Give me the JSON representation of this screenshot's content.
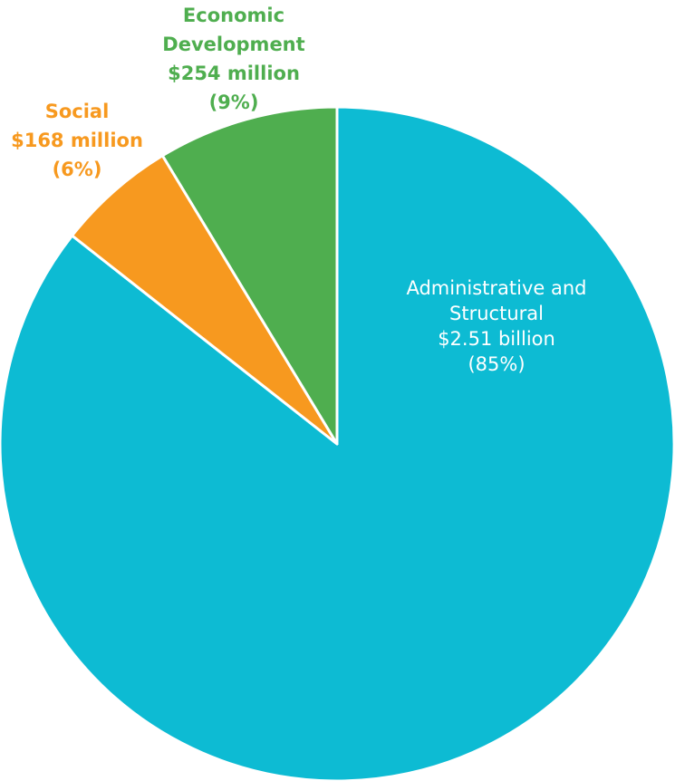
{
  "chart_data": {
    "type": "pie",
    "title": "",
    "slices": [
      {
        "name": "Administrative and Structural",
        "value": 2510,
        "value_label": "$2.51 billion",
        "percent": 85,
        "percent_label": "(85%)",
        "color": "#0dbbd3",
        "label_lines": [
          "Administrative and",
          "Structural",
          "$2.51 billion",
          "(85%)"
        ],
        "label_color": "#ffffff"
      },
      {
        "name": "Social",
        "value": 168,
        "value_label": "$168 million",
        "percent": 6,
        "percent_label": "(6%)",
        "color": "#f7991f",
        "label_lines": [
          "Social",
          "$168 million",
          "(6%)"
        ],
        "label_color": "#f7991f"
      },
      {
        "name": "Economic Development",
        "value": 254,
        "value_label": "$254 million",
        "percent": 9,
        "percent_label": "(9%)",
        "color": "#4fae4f",
        "label_lines": [
          "Economic",
          "Development",
          "$254 million",
          "(9%)"
        ],
        "label_color": "#4fae4f"
      }
    ],
    "start_angle": "top (12 o'clock)",
    "direction": "clockwise",
    "legend": "none (labels placed beside slices)"
  }
}
